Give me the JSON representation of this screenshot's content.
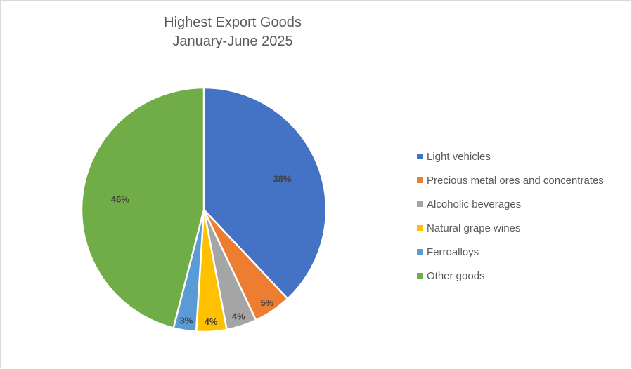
{
  "chart_data": {
    "type": "pie",
    "title": "Highest Export Goods",
    "subtitle": "January-June 2025",
    "categories": [
      "Light vehicles",
      "Precious metal ores and concentrates",
      "Alcoholic beverages",
      "Natural grape wines",
      "Ferroalloys",
      "Other goods"
    ],
    "values": [
      38,
      5,
      4,
      4,
      3,
      46
    ],
    "data_labels": [
      "38%",
      "5%",
      "4%",
      "4%",
      "3%",
      "46%"
    ],
    "colors": [
      "#4472c4",
      "#ed7d31",
      "#a5a5a5",
      "#ffc000",
      "#5b9bd5",
      "#70ad47"
    ],
    "legend_position": "right"
  }
}
